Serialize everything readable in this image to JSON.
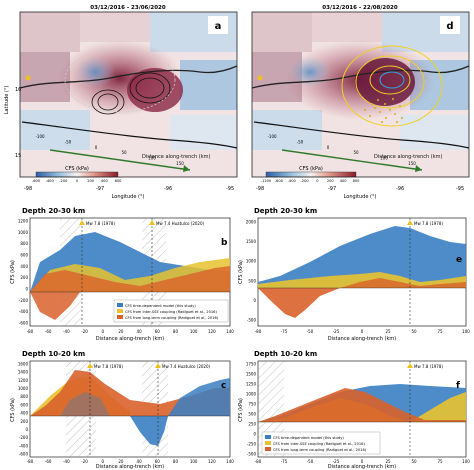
{
  "maps": {
    "a": {
      "date_range": "03/12/2016 - 23/06/2020",
      "panel_letter": "a",
      "colorbar_label": "CFS (kPa)",
      "colorbar_ticks": [
        "-600",
        "-400",
        "-200",
        "0",
        "200",
        "400",
        "600"
      ]
    },
    "d": {
      "date_range": "03/12/2016 - 22/08/2020",
      "panel_letter": "d",
      "colorbar_label": "CFS (kPa)",
      "colorbar_ticks": [
        "-1200",
        "-600",
        "-400",
        "-200",
        "0",
        "200",
        "400",
        "800"
      ]
    },
    "lat_axis_label": "Latitude (°)",
    "lon_axis_label": "Longitude (°)",
    "lon_ticks": [
      "-98",
      "-97",
      "-96",
      "-95"
    ],
    "lat_ticks": [
      "16",
      "15"
    ],
    "trench_axis_label": "Distance along-trench (km)",
    "trench_ticks": [
      "-100",
      "-50",
      "0",
      "50",
      "100",
      "150"
    ]
  },
  "profiles": {
    "colors": {
      "time_dependent": "#3a7fc2",
      "inter_sse": "#e8c22f",
      "long_term": "#d9622b"
    },
    "event_1978": "Mw 7.8 (1978)",
    "event_2020": "Mw 7.4 Huatulco (2020)",
    "b": {
      "depth_title": "Depth 20-30 km",
      "letter": "b",
      "y_axis_label": "CFS (kPa)",
      "x_axis_label": "Distance along-trench (km)",
      "y_ticks": [
        "1200",
        "1000",
        "800",
        "600",
        "400",
        "200",
        "0",
        "-200",
        "-400",
        "-600"
      ],
      "x_ticks": [
        "-80",
        "-60",
        "-40",
        "-20",
        "0",
        "20",
        "40",
        "60",
        "80",
        "100",
        "120",
        "140"
      ],
      "legend": [
        "CFS time-dependent model (this study)",
        "CFS from inter-SSE coupling (Radiguet et al., 2016)",
        "CFS from long-term coupling (Radiguet et al., 2016)"
      ]
    },
    "c": {
      "depth_title": "Depth 10-20 km",
      "letter": "c",
      "y_axis_label": "CFS (kPa)",
      "x_axis_label": "Distance along-trench (km)",
      "y_ticks": [
        "1600",
        "1400",
        "1200",
        "1000",
        "800",
        "600",
        "400",
        "200",
        "0",
        "-200",
        "-400",
        "-600"
      ],
      "x_ticks": [
        "-80",
        "-60",
        "-40",
        "-20",
        "0",
        "20",
        "40",
        "60",
        "80",
        "100",
        "120",
        "140"
      ]
    },
    "e": {
      "depth_title": "Depth 20-30 km",
      "letter": "e",
      "y_axis_label": "CFS (kPa)",
      "x_axis_label": "Distance along-trench (km)",
      "y_ticks": [
        "2000",
        "1500",
        "1000",
        "500",
        "0",
        "-500"
      ],
      "x_ticks": [
        "-80",
        "-75",
        "-50",
        "-25",
        "0",
        "25",
        "50",
        "75",
        "100"
      ]
    },
    "f": {
      "depth_title": "Depth 10-20 km",
      "letter": "f",
      "y_axis_label": "CFS (kPa)",
      "x_axis_label": "Distance along-trench (km)",
      "y_ticks": [
        "1750",
        "1500",
        "1250",
        "1000",
        "750",
        "500",
        "250",
        "0",
        "-250",
        "-500"
      ],
      "x_ticks": [
        "-80",
        "-75",
        "-50",
        "-25",
        "0",
        "25",
        "50",
        "75",
        "100"
      ],
      "legend": [
        "CFS time-dependent model (this study)",
        "CFS from inter-SSE coupling (Radiguet et al., 2016)",
        "CFS from long-term coupling (Radiguet et al., 2016)"
      ]
    }
  }
}
